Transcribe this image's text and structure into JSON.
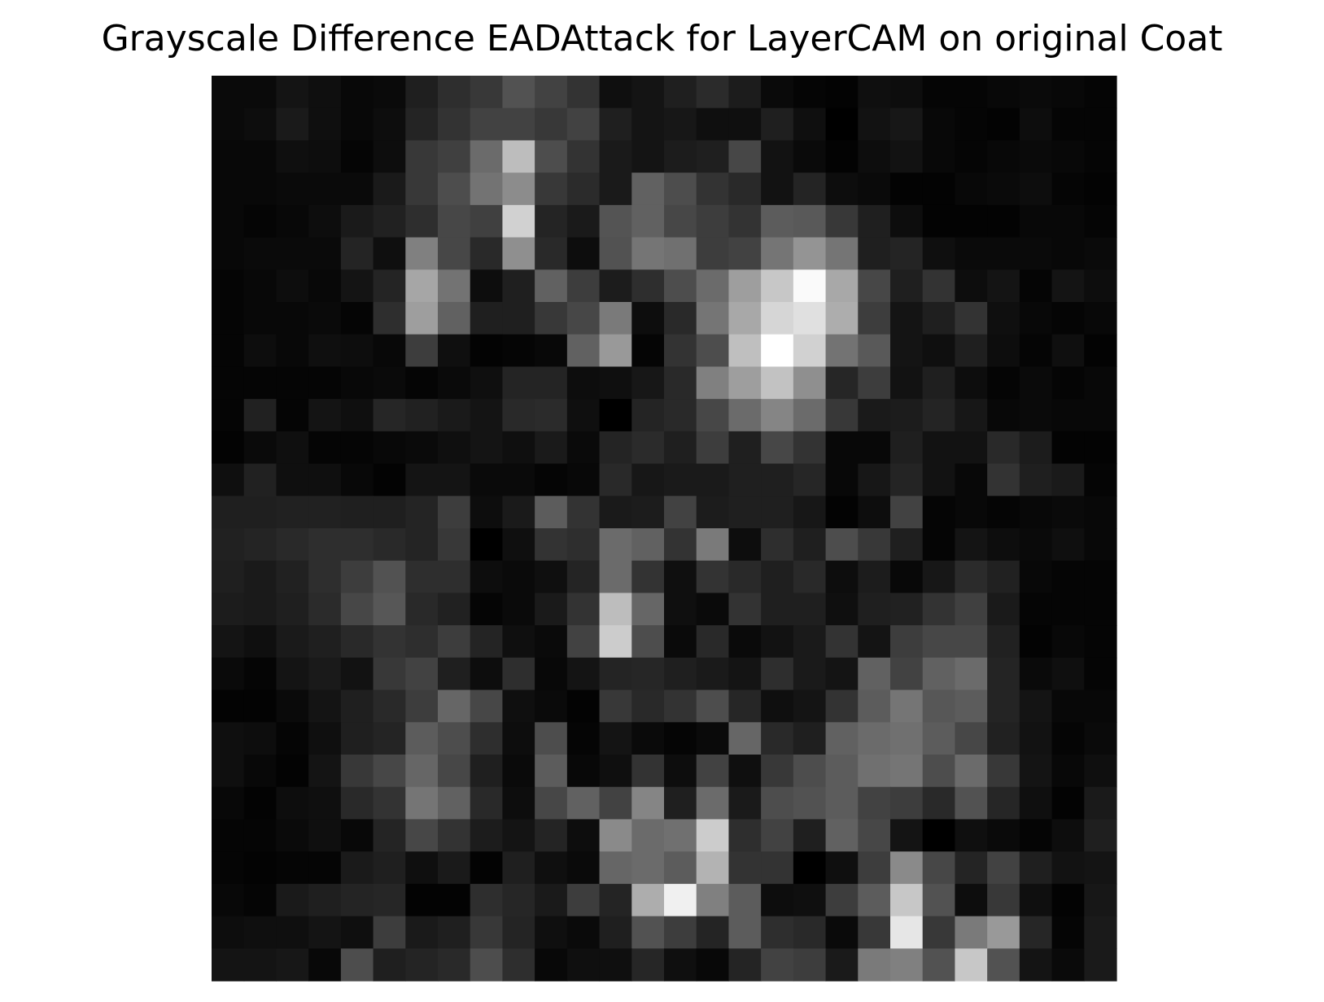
{
  "chart_data": {
    "type": "heatmap",
    "title": "Grayscale Difference EADAttack for LayerCAM on original Coat",
    "colormap": "gray",
    "vmin": 0,
    "vmax": 1,
    "axes_visible": false,
    "rows": 28,
    "cols": 28,
    "values": [
      [
        0.04,
        0.04,
        0.08,
        0.06,
        0.03,
        0.04,
        0.12,
        0.18,
        0.22,
        0.32,
        0.26,
        0.2,
        0.06,
        0.08,
        0.12,
        0.17,
        0.11,
        0.04,
        0.02,
        0.01,
        0.06,
        0.05,
        0.02,
        0.02,
        0.03,
        0.04,
        0.03,
        0.02
      ],
      [
        0.04,
        0.05,
        0.1,
        0.06,
        0.03,
        0.05,
        0.14,
        0.2,
        0.26,
        0.26,
        0.22,
        0.26,
        0.12,
        0.08,
        0.09,
        0.06,
        0.06,
        0.12,
        0.06,
        0.0,
        0.07,
        0.09,
        0.03,
        0.02,
        0.01,
        0.05,
        0.02,
        0.02
      ],
      [
        0.03,
        0.03,
        0.06,
        0.05,
        0.02,
        0.05,
        0.22,
        0.25,
        0.42,
        0.74,
        0.3,
        0.2,
        0.1,
        0.08,
        0.11,
        0.12,
        0.28,
        0.07,
        0.04,
        0.01,
        0.05,
        0.07,
        0.03,
        0.02,
        0.03,
        0.04,
        0.03,
        0.02
      ],
      [
        0.03,
        0.03,
        0.04,
        0.04,
        0.04,
        0.1,
        0.22,
        0.3,
        0.45,
        0.55,
        0.22,
        0.17,
        0.1,
        0.38,
        0.3,
        0.2,
        0.16,
        0.07,
        0.14,
        0.05,
        0.04,
        0.01,
        0.01,
        0.03,
        0.04,
        0.05,
        0.02,
        0.01
      ],
      [
        0.03,
        0.02,
        0.03,
        0.05,
        0.1,
        0.13,
        0.18,
        0.28,
        0.25,
        0.82,
        0.14,
        0.1,
        0.33,
        0.38,
        0.28,
        0.24,
        0.2,
        0.36,
        0.35,
        0.22,
        0.12,
        0.05,
        0.01,
        0.01,
        0.01,
        0.03,
        0.03,
        0.02
      ],
      [
        0.03,
        0.04,
        0.04,
        0.04,
        0.14,
        0.06,
        0.5,
        0.28,
        0.16,
        0.56,
        0.16,
        0.05,
        0.32,
        0.46,
        0.44,
        0.24,
        0.26,
        0.46,
        0.58,
        0.46,
        0.12,
        0.14,
        0.06,
        0.04,
        0.04,
        0.04,
        0.03,
        0.04
      ],
      [
        0.02,
        0.03,
        0.05,
        0.03,
        0.08,
        0.14,
        0.65,
        0.45,
        0.05,
        0.12,
        0.38,
        0.24,
        0.11,
        0.18,
        0.3,
        0.42,
        0.62,
        0.78,
        0.98,
        0.66,
        0.28,
        0.12,
        0.2,
        0.05,
        0.08,
        0.02,
        0.08,
        0.05
      ],
      [
        0.02,
        0.03,
        0.03,
        0.04,
        0.02,
        0.18,
        0.62,
        0.38,
        0.12,
        0.12,
        0.22,
        0.28,
        0.48,
        0.05,
        0.16,
        0.46,
        0.66,
        0.84,
        0.88,
        0.68,
        0.24,
        0.08,
        0.12,
        0.2,
        0.06,
        0.03,
        0.02,
        0.03
      ],
      [
        0.02,
        0.05,
        0.03,
        0.06,
        0.05,
        0.03,
        0.24,
        0.06,
        0.01,
        0.02,
        0.03,
        0.38,
        0.6,
        0.02,
        0.2,
        0.3,
        0.75,
        1.0,
        0.82,
        0.45,
        0.35,
        0.08,
        0.06,
        0.12,
        0.05,
        0.02,
        0.06,
        0.01
      ],
      [
        0.02,
        0.02,
        0.02,
        0.02,
        0.03,
        0.04,
        0.02,
        0.04,
        0.06,
        0.14,
        0.14,
        0.05,
        0.06,
        0.09,
        0.16,
        0.5,
        0.62,
        0.76,
        0.56,
        0.15,
        0.24,
        0.07,
        0.12,
        0.05,
        0.02,
        0.04,
        0.02,
        0.03
      ],
      [
        0.02,
        0.13,
        0.02,
        0.08,
        0.06,
        0.15,
        0.13,
        0.1,
        0.08,
        0.16,
        0.17,
        0.06,
        0.0,
        0.14,
        0.16,
        0.28,
        0.42,
        0.52,
        0.42,
        0.22,
        0.1,
        0.11,
        0.14,
        0.09,
        0.03,
        0.04,
        0.03,
        0.03
      ],
      [
        0.01,
        0.04,
        0.06,
        0.02,
        0.02,
        0.03,
        0.04,
        0.06,
        0.08,
        0.06,
        0.1,
        0.04,
        0.14,
        0.17,
        0.12,
        0.24,
        0.12,
        0.28,
        0.2,
        0.03,
        0.03,
        0.12,
        0.07,
        0.07,
        0.16,
        0.11,
        0.01,
        0.01
      ],
      [
        0.06,
        0.13,
        0.06,
        0.06,
        0.03,
        0.01,
        0.08,
        0.08,
        0.04,
        0.04,
        0.02,
        0.03,
        0.16,
        0.09,
        0.1,
        0.1,
        0.12,
        0.12,
        0.15,
        0.03,
        0.09,
        0.14,
        0.07,
        0.03,
        0.2,
        0.12,
        0.1,
        0.02
      ],
      [
        0.12,
        0.12,
        0.13,
        0.13,
        0.12,
        0.12,
        0.14,
        0.24,
        0.05,
        0.1,
        0.36,
        0.2,
        0.1,
        0.11,
        0.26,
        0.11,
        0.12,
        0.12,
        0.09,
        0.01,
        0.05,
        0.26,
        0.02,
        0.03,
        0.02,
        0.03,
        0.04,
        0.03
      ],
      [
        0.13,
        0.14,
        0.16,
        0.18,
        0.18,
        0.16,
        0.14,
        0.22,
        0.0,
        0.06,
        0.2,
        0.18,
        0.42,
        0.38,
        0.2,
        0.48,
        0.05,
        0.18,
        0.12,
        0.3,
        0.22,
        0.12,
        0.02,
        0.08,
        0.05,
        0.04,
        0.06,
        0.03
      ],
      [
        0.12,
        0.1,
        0.13,
        0.18,
        0.24,
        0.32,
        0.18,
        0.18,
        0.05,
        0.04,
        0.06,
        0.14,
        0.42,
        0.2,
        0.06,
        0.2,
        0.16,
        0.12,
        0.16,
        0.05,
        0.11,
        0.03,
        0.09,
        0.17,
        0.13,
        0.03,
        0.02,
        0.02
      ],
      [
        0.11,
        0.1,
        0.12,
        0.17,
        0.28,
        0.34,
        0.16,
        0.13,
        0.02,
        0.04,
        0.1,
        0.2,
        0.74,
        0.4,
        0.06,
        0.04,
        0.2,
        0.12,
        0.12,
        0.06,
        0.12,
        0.13,
        0.2,
        0.25,
        0.1,
        0.02,
        0.02,
        0.02
      ],
      [
        0.08,
        0.06,
        0.1,
        0.12,
        0.16,
        0.2,
        0.18,
        0.24,
        0.14,
        0.06,
        0.04,
        0.26,
        0.8,
        0.3,
        0.04,
        0.16,
        0.04,
        0.07,
        0.1,
        0.2,
        0.08,
        0.24,
        0.28,
        0.28,
        0.13,
        0.01,
        0.03,
        0.02
      ],
      [
        0.04,
        0.02,
        0.08,
        0.1,
        0.07,
        0.22,
        0.26,
        0.12,
        0.05,
        0.18,
        0.03,
        0.08,
        0.14,
        0.15,
        0.12,
        0.1,
        0.08,
        0.18,
        0.1,
        0.08,
        0.38,
        0.26,
        0.38,
        0.42,
        0.14,
        0.04,
        0.06,
        0.02
      ],
      [
        0.01,
        0.01,
        0.04,
        0.08,
        0.12,
        0.16,
        0.24,
        0.4,
        0.28,
        0.06,
        0.04,
        0.01,
        0.22,
        0.16,
        0.2,
        0.3,
        0.15,
        0.06,
        0.08,
        0.2,
        0.36,
        0.46,
        0.34,
        0.36,
        0.14,
        0.08,
        0.03,
        0.03
      ],
      [
        0.06,
        0.05,
        0.02,
        0.06,
        0.12,
        0.14,
        0.36,
        0.3,
        0.18,
        0.05,
        0.3,
        0.02,
        0.08,
        0.04,
        0.02,
        0.04,
        0.4,
        0.16,
        0.12,
        0.38,
        0.42,
        0.44,
        0.36,
        0.28,
        0.13,
        0.07,
        0.02,
        0.04
      ],
      [
        0.06,
        0.03,
        0.01,
        0.08,
        0.22,
        0.28,
        0.4,
        0.28,
        0.12,
        0.04,
        0.36,
        0.03,
        0.06,
        0.2,
        0.05,
        0.26,
        0.06,
        0.22,
        0.3,
        0.36,
        0.44,
        0.46,
        0.3,
        0.42,
        0.22,
        0.08,
        0.03,
        0.06
      ],
      [
        0.03,
        0.01,
        0.05,
        0.06,
        0.16,
        0.2,
        0.46,
        0.38,
        0.16,
        0.05,
        0.28,
        0.38,
        0.26,
        0.52,
        0.12,
        0.42,
        0.1,
        0.3,
        0.32,
        0.36,
        0.26,
        0.24,
        0.16,
        0.32,
        0.15,
        0.06,
        0.01,
        0.1
      ],
      [
        0.02,
        0.02,
        0.04,
        0.06,
        0.03,
        0.14,
        0.28,
        0.2,
        0.11,
        0.08,
        0.14,
        0.05,
        0.54,
        0.42,
        0.44,
        0.8,
        0.18,
        0.26,
        0.12,
        0.38,
        0.28,
        0.08,
        0.0,
        0.06,
        0.04,
        0.02,
        0.05,
        0.12
      ],
      [
        0.02,
        0.01,
        0.02,
        0.02,
        0.1,
        0.12,
        0.06,
        0.1,
        0.01,
        0.12,
        0.06,
        0.04,
        0.4,
        0.42,
        0.36,
        0.7,
        0.2,
        0.2,
        0.0,
        0.06,
        0.24,
        0.54,
        0.28,
        0.14,
        0.26,
        0.12,
        0.07,
        0.08
      ],
      [
        0.03,
        0.02,
        0.1,
        0.12,
        0.14,
        0.15,
        0.01,
        0.01,
        0.18,
        0.15,
        0.1,
        0.24,
        0.14,
        0.68,
        0.94,
        0.5,
        0.36,
        0.05,
        0.06,
        0.24,
        0.36,
        0.78,
        0.32,
        0.05,
        0.22,
        0.06,
        0.01,
        0.09
      ],
      [
        0.05,
        0.06,
        0.06,
        0.08,
        0.06,
        0.24,
        0.1,
        0.12,
        0.22,
        0.14,
        0.06,
        0.04,
        0.12,
        0.32,
        0.24,
        0.14,
        0.36,
        0.18,
        0.16,
        0.04,
        0.22,
        0.9,
        0.22,
        0.48,
        0.6,
        0.15,
        0.02,
        0.1
      ],
      [
        0.08,
        0.08,
        0.09,
        0.03,
        0.3,
        0.12,
        0.14,
        0.16,
        0.3,
        0.18,
        0.03,
        0.06,
        0.06,
        0.15,
        0.06,
        0.03,
        0.14,
        0.26,
        0.24,
        0.1,
        0.48,
        0.5,
        0.32,
        0.78,
        0.32,
        0.08,
        0.04,
        0.1
      ]
    ]
  }
}
